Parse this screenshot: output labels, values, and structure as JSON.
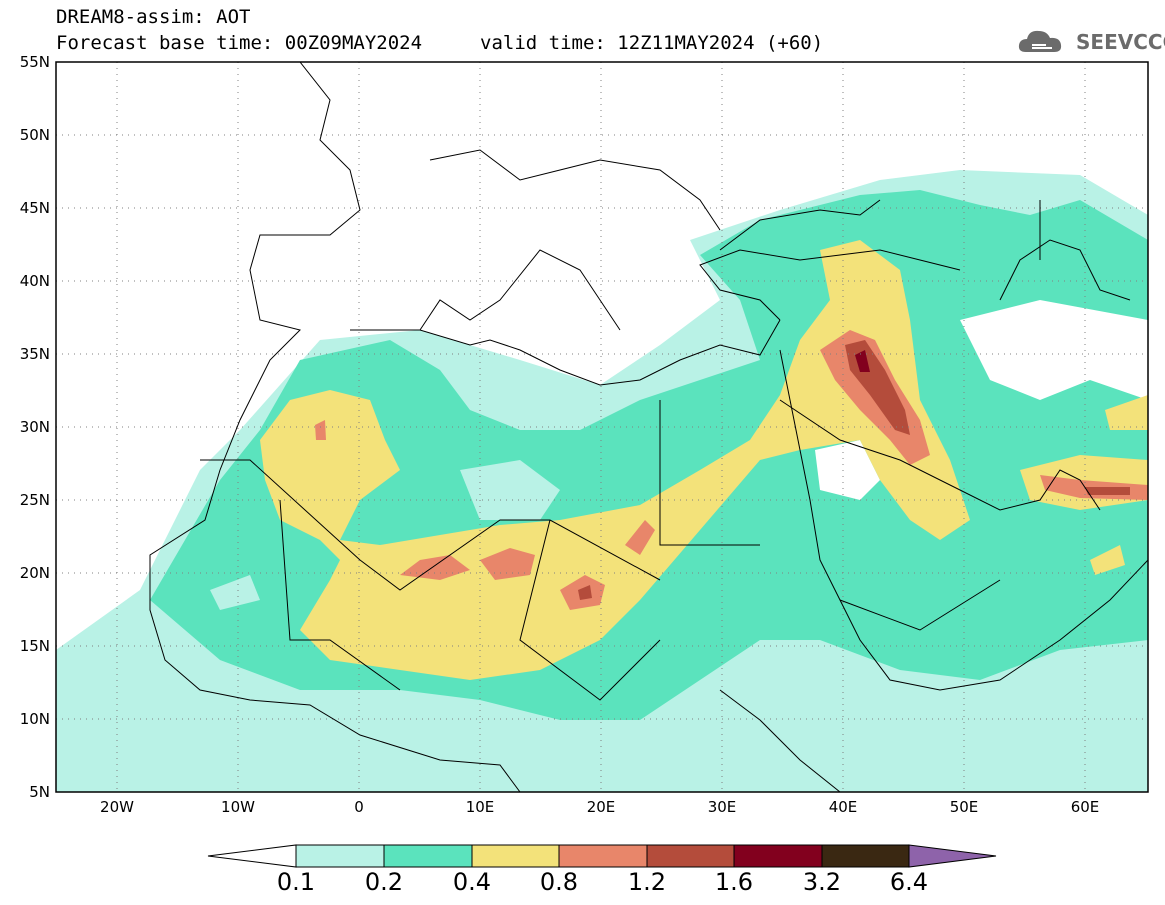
{
  "header": {
    "line1": "DREAM8-assim: AOT",
    "line2": "Forecast base time: 00Z09MAY2024",
    "valid": "valid time: 12Z11MAY2024 (+60)",
    "logo_text": "SEEVCCC"
  },
  "map": {
    "lon_range": [
      -25,
      65
    ],
    "lat_range": [
      5,
      55
    ],
    "lat_labels": [
      "55N",
      "50N",
      "45N",
      "40N",
      "35N",
      "30N",
      "25N",
      "20N",
      "15N",
      "10N",
      "5N"
    ],
    "lon_labels": [
      "20W",
      "10W",
      "0",
      "10E",
      "20E",
      "30E",
      "40E",
      "50E",
      "60E"
    ],
    "grid": "dotted"
  },
  "colorbar": {
    "labels": [
      "0.1",
      "0.2",
      "0.4",
      "0.8",
      "1.2",
      "1.6",
      "3.2",
      "6.4"
    ],
    "colors": [
      "#ffffff",
      "#b9f2e6",
      "#5be3bd",
      "#f3e27a",
      "#e8866a",
      "#b44c3b",
      "#82001e",
      "#3a2812",
      "#8e63aa"
    ]
  }
}
